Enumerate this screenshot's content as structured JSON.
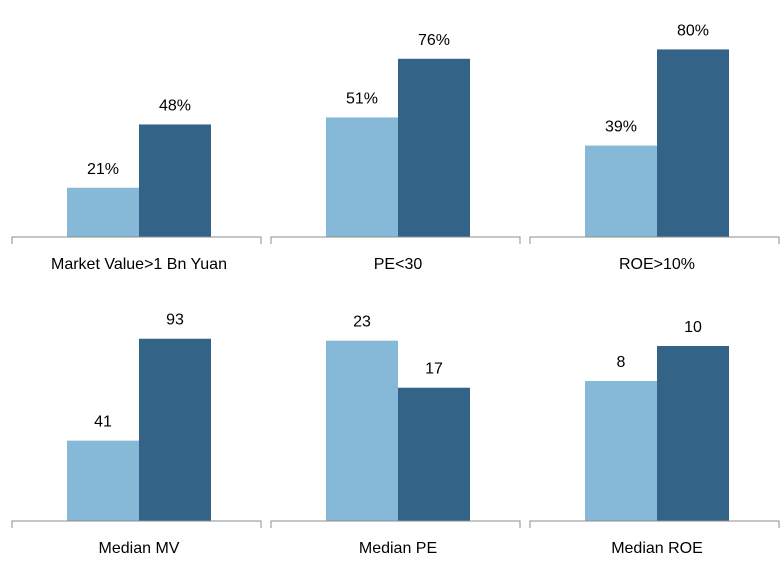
{
  "colors": {
    "light": "#86b9d8",
    "dark": "#336487",
    "axis": "#8c8c8c"
  },
  "chart_data": [
    {
      "type": "bar",
      "categories": [
        "Market Value>1 Bn Yuan"
      ],
      "series": [
        {
          "values": [
            21
          ],
          "labels": [
            "21%"
          ]
        },
        {
          "values": [
            48
          ],
          "labels": [
            "48%"
          ]
        }
      ],
      "xlabel": "",
      "ylabel": "",
      "ylim": [
        0,
        87
      ],
      "grid": false
    },
    {
      "type": "bar",
      "categories": [
        "PE<30"
      ],
      "series": [
        {
          "values": [
            51
          ],
          "labels": [
            "51%"
          ]
        },
        {
          "values": [
            76
          ],
          "labels": [
            "76%"
          ]
        }
      ],
      "xlabel": "",
      "ylabel": "",
      "ylim": [
        0,
        87
      ],
      "grid": false
    },
    {
      "type": "bar",
      "categories": [
        "ROE>10%"
      ],
      "series": [
        {
          "values": [
            39
          ],
          "labels": [
            "39%"
          ]
        },
        {
          "values": [
            80
          ],
          "labels": [
            "80%"
          ]
        }
      ],
      "xlabel": "",
      "ylabel": "",
      "ylim": [
        0,
        87
      ],
      "grid": false
    },
    {
      "type": "bar",
      "categories": [
        "Median MV"
      ],
      "series": [
        {
          "values": [
            41
          ],
          "labels": [
            "41"
          ]
        },
        {
          "values": [
            93
          ],
          "labels": [
            "93"
          ]
        }
      ],
      "xlabel": "",
      "ylabel": "",
      "ylim": [
        0,
        100
      ],
      "grid": false
    },
    {
      "type": "bar",
      "categories": [
        "Median PE"
      ],
      "series": [
        {
          "values": [
            23
          ],
          "labels": [
            "23"
          ]
        },
        {
          "values": [
            17
          ],
          "labels": [
            "17"
          ]
        }
      ],
      "xlabel": "",
      "ylabel": "",
      "ylim": [
        0,
        25
      ],
      "grid": false
    },
    {
      "type": "bar",
      "categories": [
        "Median ROE"
      ],
      "series": [
        {
          "values": [
            8
          ],
          "labels": [
            "8"
          ]
        },
        {
          "values": [
            10
          ],
          "labels": [
            "10"
          ]
        }
      ],
      "xlabel": "",
      "ylabel": "",
      "ylim": [
        0,
        11.2
      ],
      "grid": false
    }
  ]
}
